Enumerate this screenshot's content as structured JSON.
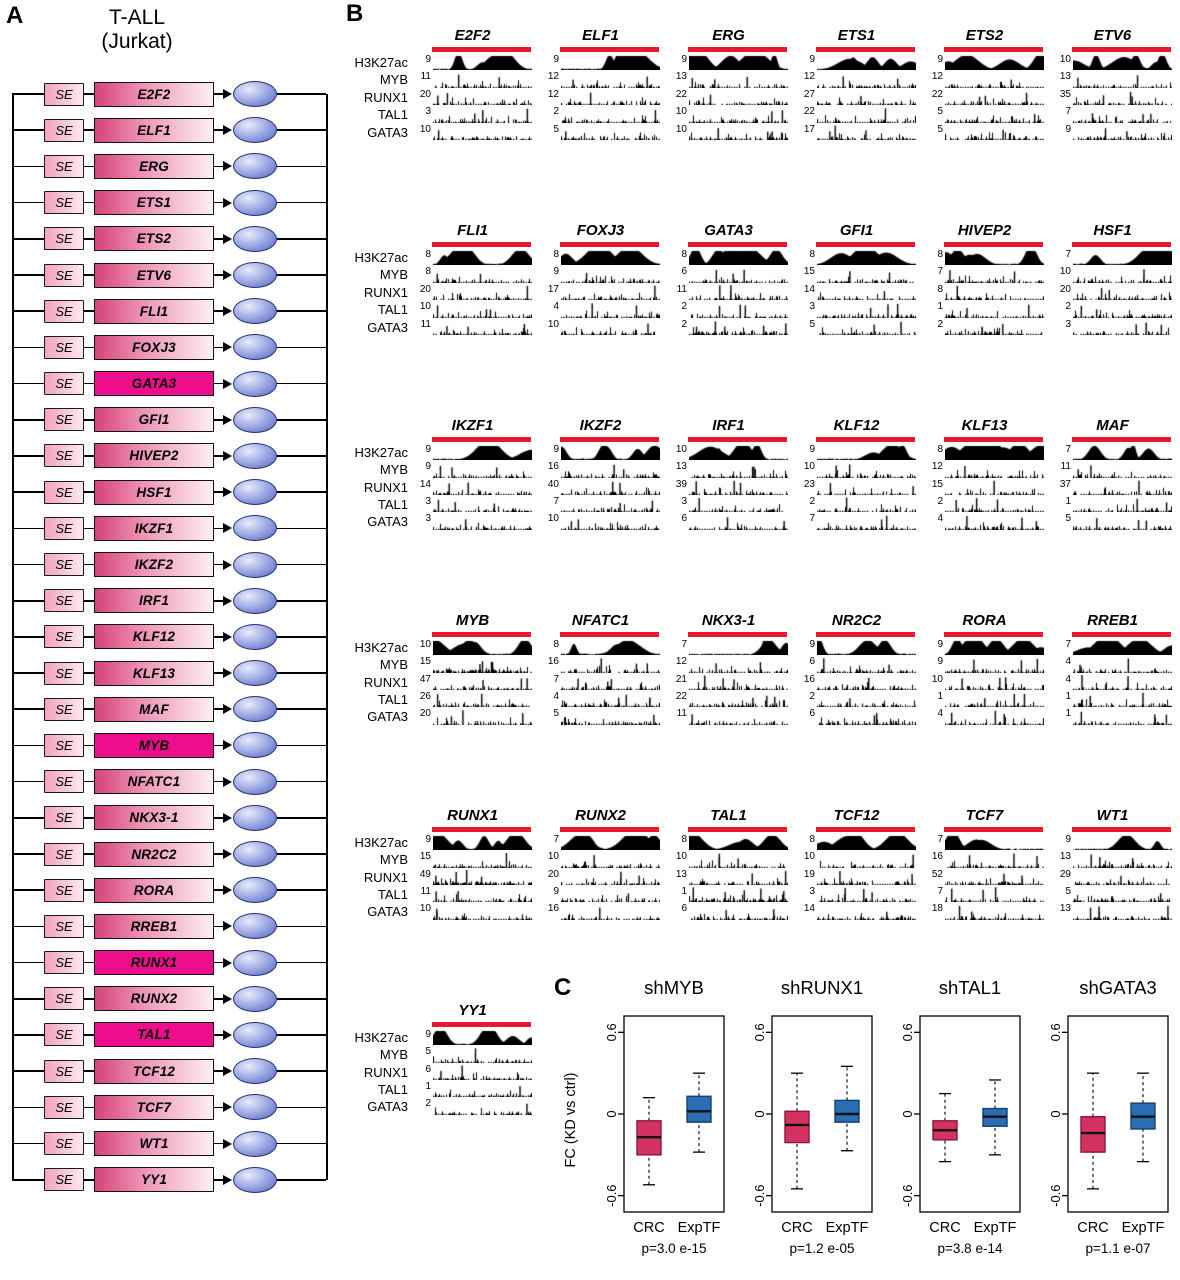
{
  "panelA": {
    "label": "A",
    "title_line1": "T-ALL",
    "title_line2": "(Jurkat)",
    "se_label": "SE",
    "highlighted_genes": [
      "GATA3",
      "MYB",
      "RUNX1",
      "TAL1"
    ],
    "genes": [
      {
        "name": "E2F2",
        "highlight": false
      },
      {
        "name": "ELF1",
        "highlight": false
      },
      {
        "name": "ERG",
        "highlight": false
      },
      {
        "name": "ETS1",
        "highlight": false
      },
      {
        "name": "ETS2",
        "highlight": false
      },
      {
        "name": "ETV6",
        "highlight": false
      },
      {
        "name": "FLI1",
        "highlight": false
      },
      {
        "name": "FOXJ3",
        "highlight": false
      },
      {
        "name": "GATA3",
        "highlight": true
      },
      {
        "name": "GFI1",
        "highlight": false
      },
      {
        "name": "HIVEP2",
        "highlight": false
      },
      {
        "name": "HSF1",
        "highlight": false
      },
      {
        "name": "IKZF1",
        "highlight": false
      },
      {
        "name": "IKZF2",
        "highlight": false
      },
      {
        "name": "IRF1",
        "highlight": false
      },
      {
        "name": "KLF12",
        "highlight": false
      },
      {
        "name": "KLF13",
        "highlight": false
      },
      {
        "name": "MAF",
        "highlight": false
      },
      {
        "name": "MYB",
        "highlight": true
      },
      {
        "name": "NFATC1",
        "highlight": false
      },
      {
        "name": "NKX3-1",
        "highlight": false
      },
      {
        "name": "NR2C2",
        "highlight": false
      },
      {
        "name": "RORA",
        "highlight": false
      },
      {
        "name": "RREB1",
        "highlight": false
      },
      {
        "name": "RUNX1",
        "highlight": true
      },
      {
        "name": "RUNX2",
        "highlight": false
      },
      {
        "name": "TAL1",
        "highlight": true
      },
      {
        "name": "TCF12",
        "highlight": false
      },
      {
        "name": "TCF7",
        "highlight": false
      },
      {
        "name": "WT1",
        "highlight": false
      },
      {
        "name": "YY1",
        "highlight": false
      }
    ]
  },
  "panelB": {
    "label": "B",
    "track_labels": [
      "H3K27ac",
      "MYB",
      "RUNX1",
      "TAL1",
      "GATA3"
    ],
    "rows": [
      {
        "genes": [
          {
            "name": "E2F2",
            "scales": [
              9,
              11,
              20,
              3,
              10
            ]
          },
          {
            "name": "ELF1",
            "scales": [
              9,
              12,
              12,
              2,
              5
            ]
          },
          {
            "name": "ERG",
            "scales": [
              9,
              13,
              22,
              10,
              10
            ]
          },
          {
            "name": "ETS1",
            "scales": [
              9,
              12,
              27,
              22,
              17
            ]
          },
          {
            "name": "ETS2",
            "scales": [
              9,
              12,
              22,
              5,
              5
            ]
          },
          {
            "name": "ETV6",
            "scales": [
              10,
              13,
              35,
              7,
              9
            ]
          }
        ]
      },
      {
        "genes": [
          {
            "name": "FLI1",
            "scales": [
              8,
              8,
              20,
              10,
              11
            ]
          },
          {
            "name": "FOXJ3",
            "scales": [
              8,
              9,
              17,
              4,
              10
            ]
          },
          {
            "name": "GATA3",
            "scales": [
              8,
              6,
              11,
              2,
              2
            ]
          },
          {
            "name": "GFI1",
            "scales": [
              8,
              15,
              14,
              3,
              5
            ]
          },
          {
            "name": "HIVEP2",
            "scales": [
              8,
              7,
              8,
              1,
              2
            ]
          },
          {
            "name": "HSF1",
            "scales": [
              7,
              10,
              20,
              2,
              3
            ]
          }
        ]
      },
      {
        "genes": [
          {
            "name": "IKZF1",
            "scales": [
              9,
              9,
              14,
              3,
              3
            ]
          },
          {
            "name": "IKZF2",
            "scales": [
              9,
              16,
              40,
              7,
              10
            ]
          },
          {
            "name": "IRF1",
            "scales": [
              10,
              13,
              39,
              3,
              6
            ]
          },
          {
            "name": "KLF12",
            "scales": [
              9,
              10,
              23,
              2,
              7
            ]
          },
          {
            "name": "KLF13",
            "scales": [
              8,
              12,
              15,
              2,
              4
            ]
          },
          {
            "name": "MAF",
            "scales": [
              7,
              11,
              37,
              1,
              5
            ]
          }
        ]
      },
      {
        "genes": [
          {
            "name": "MYB",
            "scales": [
              10,
              15,
              47,
              26,
              20
            ]
          },
          {
            "name": "NFATC1",
            "scales": [
              8,
              16,
              7,
              4,
              5
            ]
          },
          {
            "name": "NKX3-1",
            "scales": [
              7,
              12,
              21,
              22,
              11
            ]
          },
          {
            "name": "NR2C2",
            "scales": [
              9,
              6,
              16,
              2,
              6
            ]
          },
          {
            "name": "RORA",
            "scales": [
              9,
              9,
              10,
              1,
              4
            ]
          },
          {
            "name": "RREB1",
            "scales": [
              7,
              4,
              4,
              1,
              1
            ]
          }
        ]
      },
      {
        "genes": [
          {
            "name": "RUNX1",
            "scales": [
              9,
              15,
              49,
              11,
              10
            ]
          },
          {
            "name": "RUNX2",
            "scales": [
              7,
              10,
              20,
              9,
              16
            ]
          },
          {
            "name": "TAL1",
            "scales": [
              8,
              10,
              13,
              1,
              6
            ]
          },
          {
            "name": "TCF12",
            "scales": [
              8,
              10,
              19,
              3,
              14
            ]
          },
          {
            "name": "TCF7",
            "scales": [
              7,
              16,
              52,
              7,
              18
            ]
          },
          {
            "name": "WT1",
            "scales": [
              9,
              13,
              29,
              5,
              13
            ]
          }
        ]
      },
      {
        "genes": [
          {
            "name": "YY1",
            "scales": [
              9,
              5,
              6,
              1,
              2
            ]
          }
        ]
      }
    ]
  },
  "panelC": {
    "label": "C",
    "y_axis_label": "FC (KD vs ctrl)"
  },
  "chart_data": {
    "type": "boxplot",
    "ylabel": "FC (KD vs ctrl)",
    "y_range": [
      -0.72,
      0.72
    ],
    "y_ticks": [
      {
        "label": "0.6",
        "value": 0.6
      },
      {
        "label": "0",
        "value": 0
      },
      {
        "label": "-0.6",
        "value": -0.6
      }
    ],
    "groups": [
      "CRC",
      "ExpTF"
    ],
    "plots": [
      {
        "title": "shMYB",
        "p_value": "p=3.0 e-15",
        "boxes": [
          {
            "group": "CRC",
            "whisker_low": -0.52,
            "q1": -0.3,
            "median": -0.17,
            "q3": -0.05,
            "whisker_high": 0.12
          },
          {
            "group": "ExpTF",
            "whisker_low": -0.28,
            "q1": -0.06,
            "median": 0.02,
            "q3": 0.13,
            "whisker_high": 0.3
          }
        ]
      },
      {
        "title": "shRUNX1",
        "p_value": "p=1.2 e-05",
        "boxes": [
          {
            "group": "CRC",
            "whisker_low": -0.55,
            "q1": -0.21,
            "median": -0.08,
            "q3": 0.02,
            "whisker_high": 0.3
          },
          {
            "group": "ExpTF",
            "whisker_low": -0.27,
            "q1": -0.06,
            "median": 0.0,
            "q3": 0.1,
            "whisker_high": 0.35
          }
        ]
      },
      {
        "title": "shTAL1",
        "p_value": "p=3.8 e-14",
        "boxes": [
          {
            "group": "CRC",
            "whisker_low": -0.35,
            "q1": -0.19,
            "median": -0.12,
            "q3": -0.05,
            "whisker_high": 0.15
          },
          {
            "group": "ExpTF",
            "whisker_low": -0.3,
            "q1": -0.09,
            "median": -0.02,
            "q3": 0.04,
            "whisker_high": 0.25
          }
        ]
      },
      {
        "title": "shGATA3",
        "p_value": "p=1.1 e-07",
        "boxes": [
          {
            "group": "CRC",
            "whisker_low": -0.55,
            "q1": -0.28,
            "median": -0.14,
            "q3": -0.02,
            "whisker_high": 0.3
          },
          {
            "group": "ExpTF",
            "whisker_low": -0.35,
            "q1": -0.11,
            "median": -0.02,
            "q3": 0.08,
            "whisker_high": 0.3
          }
        ]
      }
    ]
  },
  "colors": {
    "super_enhancer_bar": "#e8192c",
    "gene_highlight": "#ee0d8d",
    "gene_gradient_start": "#d6437a",
    "protein_ellipse": "#5463bd",
    "crc_box_fill": "#d23360",
    "crc_box_stroke": "#8f1440",
    "exptf_box_fill": "#2a6db4",
    "exptf_box_stroke": "#14426f"
  }
}
